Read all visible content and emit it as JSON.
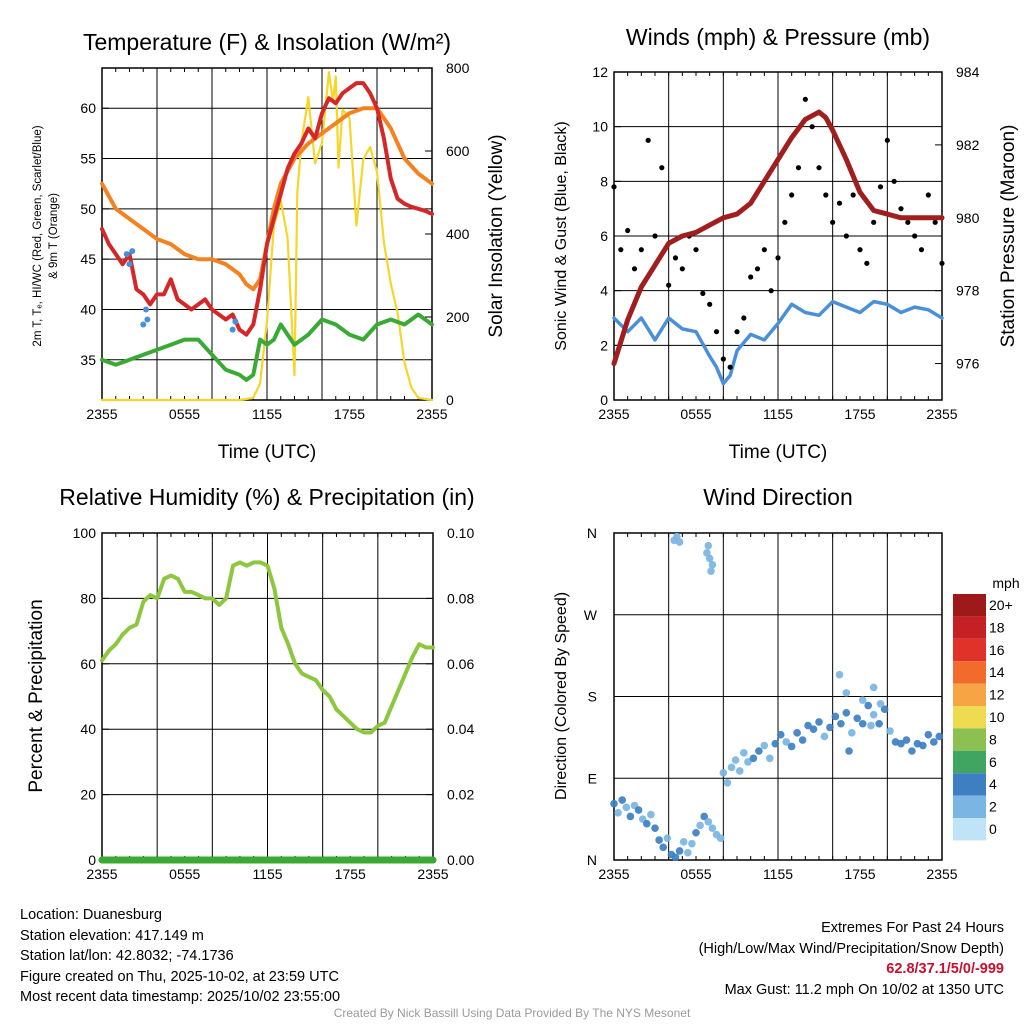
{
  "charts": {
    "temp": {
      "title": "Temperature (F) & Insolation (W/m²)",
      "ylabel_left": [
        "2m T, Tₑ, HI/WC (Red, Green, Scarlet/Blue)",
        "& 9m T (Orange)"
      ],
      "ylabel_right": "Solar Insolation (Yellow)",
      "xlabel": "Time (UTC)"
    },
    "wind": {
      "title": "Winds (mph) & Pressure (mb)",
      "ylabel_left": "Sonic Wind & Gust (Blue, Black)",
      "ylabel_right": "Station Pressure (Maroon)",
      "xlabel": "Time (UTC)"
    },
    "rh": {
      "title": "Relative Humidity (%) & Precipitation (in)",
      "ylabel_left": "Percent & Precipitation"
    },
    "dir": {
      "title": "Wind Direction",
      "ylabel_left": "Direction (Colored By Speed)",
      "colorbar_title": "mph"
    }
  },
  "chart_data": [
    {
      "id": "temp",
      "type": "line",
      "title": "Temperature (F) & Insolation (W/m²)",
      "xlabel": "Time (UTC)",
      "x_ticks": [
        "2355",
        "0555",
        "1155",
        "1755",
        "2355"
      ],
      "x_range_hours": [
        0,
        24
      ],
      "ylim": [
        31,
        64
      ],
      "y_ticks": [
        35,
        40,
        45,
        50,
        55,
        60
      ],
      "y2lim": [
        0,
        800
      ],
      "y2_ticks": [
        0,
        200,
        400,
        600,
        800
      ],
      "series": [
        {
          "name": "2m T",
          "color": "#d62728",
          "x": [
            0,
            0.5,
            1,
            1.5,
            2,
            2.5,
            3,
            3.5,
            4,
            4.5,
            5,
            5.5,
            6,
            6.5,
            7,
            7.5,
            8,
            8.5,
            9,
            9.5,
            10,
            10.5,
            11,
            11.5,
            12,
            12.5,
            13,
            13.5,
            14,
            14.5,
            15,
            15.5,
            16,
            16.5,
            17,
            17.5,
            18,
            18.5,
            19,
            19.5,
            20,
            20.5,
            21,
            21.5,
            22,
            22.5,
            23,
            23.5,
            24
          ],
          "y": [
            48,
            46.5,
            45.5,
            44.5,
            45.5,
            42,
            41.5,
            40.5,
            41.5,
            41.5,
            43,
            41,
            40.5,
            40,
            40.5,
            41,
            40,
            39.5,
            39,
            39.5,
            38,
            37.5,
            38.5,
            42,
            46.5,
            49,
            51.5,
            54,
            55.5,
            56.5,
            58,
            57,
            59.5,
            61,
            60.5,
            61.5,
            62,
            62.5,
            62.5,
            61.5,
            60,
            57,
            53,
            51,
            50.5,
            50.2,
            50,
            49.8,
            49.5
          ]
        },
        {
          "name": "9m T",
          "color": "#f58220",
          "x": [
            0,
            1,
            2,
            3,
            4,
            5,
            6,
            7,
            8,
            9,
            10,
            10.5,
            11,
            11.5,
            12,
            12.5,
            13,
            14,
            15,
            16,
            17,
            18,
            19,
            20,
            21,
            22,
            23,
            24
          ],
          "y": [
            52.5,
            50,
            49,
            48,
            47,
            46.5,
            45.5,
            45,
            45,
            44.5,
            43.5,
            42.5,
            42,
            43,
            46.5,
            50,
            52.5,
            55,
            56.5,
            57.5,
            58.5,
            59.5,
            60,
            60,
            58,
            55,
            53.5,
            52.5
          ]
        },
        {
          "name": "T dew",
          "color": "#3aaa35",
          "x": [
            0,
            1,
            2,
            3,
            4,
            5,
            6,
            7,
            8,
            9,
            10,
            10.5,
            11,
            11.5,
            12,
            12.5,
            13,
            13.5,
            14,
            15,
            16,
            17,
            18,
            19,
            20,
            21,
            22,
            23,
            24
          ],
          "y": [
            35,
            34.5,
            35,
            35.5,
            36,
            36.5,
            37,
            37,
            35.5,
            34,
            33.5,
            33,
            33.5,
            37,
            36.5,
            37,
            38.5,
            37.5,
            36.5,
            37.5,
            39,
            38.5,
            37.5,
            37,
            38.5,
            39,
            38.5,
            39.5,
            38.5
          ]
        },
        {
          "name": "HI/WC",
          "color": "#4a90d9",
          "x": [
            1.8,
            2.0,
            2.2,
            3.0,
            3.2,
            3.3,
            9.5,
            9.7
          ],
          "y": [
            45.5,
            44.5,
            45.8,
            38.5,
            40,
            39,
            38,
            38.8
          ]
        },
        {
          "name": "Solar",
          "axis": "right",
          "color": "#f5d62a",
          "x": [
            0,
            10,
            11,
            11.5,
            12,
            12.5,
            13,
            13.5,
            14,
            14.2,
            14.5,
            15,
            15.5,
            16,
            16.5,
            16.8,
            17,
            17.2,
            17.5,
            18,
            18.5,
            19,
            19.5,
            20,
            20.5,
            21,
            21.5,
            22,
            22.5,
            23,
            24
          ],
          "y": [
            0,
            0,
            5,
            40,
            190,
            420,
            480,
            390,
            60,
            500,
            620,
            730,
            570,
            620,
            790,
            720,
            780,
            560,
            700,
            680,
            420,
            580,
            610,
            550,
            380,
            280,
            210,
            90,
            30,
            5,
            0
          ]
        }
      ]
    },
    {
      "id": "wind",
      "type": "scatter",
      "title": "Winds (mph) & Pressure (mb)",
      "xlabel": "Time (UTC)",
      "x_ticks": [
        "2355",
        "0555",
        "1155",
        "1755",
        "2355"
      ],
      "ylim": [
        0,
        12
      ],
      "y_ticks": [
        0,
        2,
        4,
        6,
        8,
        10,
        12
      ],
      "y2lim": [
        975,
        984
      ],
      "y2_ticks": [
        976,
        978,
        980,
        982,
        984
      ],
      "series": [
        {
          "name": "Sonic Wind",
          "color": "#4a90d9",
          "x": [
            0,
            1,
            2,
            3,
            4,
            5,
            6,
            7,
            7.5,
            8,
            8.5,
            9,
            10,
            11,
            12,
            13,
            14,
            15,
            16,
            17,
            18,
            19,
            20,
            21,
            22,
            23,
            24
          ],
          "y": [
            3,
            2.5,
            3,
            2.2,
            3,
            2.6,
            2.5,
            1.6,
            1.2,
            0.6,
            0.9,
            1.8,
            2.4,
            2.2,
            2.8,
            3.5,
            3.2,
            3.1,
            3.6,
            3.4,
            3.2,
            3.6,
            3.5,
            3.2,
            3.4,
            3.3,
            3
          ]
        },
        {
          "name": "Gust",
          "color": "#000000",
          "x": [
            0,
            0.5,
            1,
            1.5,
            2,
            2.5,
            3,
            3.5,
            4,
            4.5,
            5,
            5.5,
            6,
            6.5,
            7,
            7.5,
            8,
            8.5,
            9,
            9.5,
            10,
            10.5,
            11,
            11.5,
            12,
            12.5,
            13,
            13.5,
            14,
            14.5,
            15,
            15.5,
            16,
            16.5,
            17,
            17.5,
            18,
            18.5,
            19,
            19.5,
            20,
            20.5,
            21,
            21.5,
            22,
            22.5,
            23,
            23.5,
            24
          ],
          "y": [
            7.8,
            5.5,
            6.2,
            4.8,
            5.5,
            9.5,
            6.0,
            8.5,
            4.2,
            5.2,
            4.8,
            6.0,
            5.5,
            3.9,
            3.5,
            2.5,
            1.5,
            1.2,
            2.5,
            3.0,
            4.5,
            4.8,
            5.5,
            4.0,
            5.2,
            6.5,
            7.5,
            8.5,
            11.0,
            10.0,
            8.5,
            7.5,
            6.5,
            7.2,
            6.0,
            7.5,
            5.5,
            5.0,
            6.5,
            7.8,
            9.5,
            8.0,
            7.0,
            6.5,
            6.0,
            5.5,
            7.5,
            6.5,
            5.0
          ]
        },
        {
          "name": "Pressure",
          "axis": "right",
          "color": "#a01e1e",
          "x": [
            0,
            1,
            2,
            3,
            4,
            5,
            6,
            7,
            8,
            9,
            10,
            11,
            12,
            13,
            14,
            15,
            15.5,
            16,
            17,
            18,
            19,
            20,
            21,
            22,
            23,
            24
          ],
          "y": [
            976,
            977.2,
            978.1,
            978.7,
            979.3,
            979.5,
            979.6,
            979.8,
            980.0,
            980.1,
            980.4,
            981.0,
            981.6,
            982.2,
            982.7,
            982.9,
            982.75,
            982.4,
            981.6,
            980.7,
            980.2,
            980.1,
            980.0,
            980.0,
            980.0,
            980.0
          ]
        }
      ]
    },
    {
      "id": "rh",
      "type": "line",
      "title": "Relative Humidity (%) & Precipitation (in)",
      "x_ticks": [
        "2355",
        "0555",
        "1155",
        "1755",
        "2355"
      ],
      "ylim": [
        0,
        100
      ],
      "y_ticks": [
        0,
        20,
        40,
        60,
        80,
        100
      ],
      "y2lim": [
        0,
        0.1
      ],
      "y2_ticks": [
        "0.00",
        "0.02",
        "0.04",
        "0.06",
        "0.08",
        "0.10"
      ],
      "series": [
        {
          "name": "RH",
          "color": "#8dc63f",
          "x": [
            0,
            0.5,
            1,
            1.5,
            2,
            2.5,
            3,
            3.5,
            4,
            4.5,
            5,
            5.5,
            6,
            6.5,
            7,
            7.5,
            8,
            8.5,
            9,
            9.5,
            10,
            10.5,
            11,
            11.5,
            12,
            12.5,
            13,
            13.5,
            14,
            14.5,
            15,
            15.5,
            16,
            16.5,
            17,
            17.5,
            18,
            18.5,
            19,
            19.5,
            20,
            20.5,
            21,
            21.5,
            22,
            22.5,
            23,
            23.5,
            24
          ],
          "y": [
            61,
            64,
            66,
            69,
            71,
            72,
            79,
            81,
            80,
            86,
            87,
            86,
            82,
            82,
            81,
            80,
            80,
            78,
            80,
            90,
            91,
            90,
            91,
            91,
            90,
            83,
            71,
            66,
            60,
            57,
            56,
            55,
            52,
            50,
            46,
            44,
            42,
            40,
            39,
            39,
            41,
            42,
            47,
            52,
            57,
            62,
            66,
            65,
            65
          ]
        },
        {
          "name": "Precipitation",
          "color": "#3aaa35",
          "x": [
            0,
            24
          ],
          "y": [
            0,
            0
          ]
        }
      ]
    },
    {
      "id": "dir",
      "type": "scatter",
      "title": "Wind Direction",
      "x_ticks": [
        "2355",
        "0555",
        "1155",
        "1755",
        "2355"
      ],
      "y_ticks": [
        "N",
        "E",
        "S",
        "W",
        "N"
      ],
      "ylim_degrees": [
        0,
        360
      ],
      "colorbar_labels": [
        "20+",
        "18",
        "16",
        "14",
        "12",
        "10",
        "8",
        "6",
        "4",
        "2",
        "0"
      ],
      "colorbar_colors": [
        "#9e1a1a",
        "#c62027",
        "#e03228",
        "#f26a2c",
        "#f7a444",
        "#efdb50",
        "#8cc151",
        "#3fa560",
        "#3d7fc2",
        "#7ab5e3",
        "#bfe3f7"
      ],
      "series": [
        {
          "name": "direction",
          "x": [
            0,
            0.3,
            0.6,
            0.9,
            1.2,
            1.5,
            1.8,
            2.1,
            2.4,
            2.7,
            3.0,
            3.3,
            3.6,
            3.9,
            4.2,
            4.5,
            4.8,
            5.1,
            5.4,
            5.7,
            6.0,
            6.3,
            6.6,
            6.9,
            7.2,
            7.5,
            7.8,
            8.0,
            8.3,
            8.6,
            8.9,
            9.2,
            9.5,
            9.8,
            10.2,
            10.6,
            11.0,
            11.4,
            11.8,
            12.2,
            12.6,
            13.0,
            13.4,
            13.8,
            14.2,
            14.6,
            15.0,
            15.4,
            15.8,
            16.2,
            16.6,
            17.0,
            17.4,
            17.8,
            18.2,
            18.6,
            19.0,
            19.4,
            19.8,
            20.2,
            20.6,
            21.0,
            21.4,
            21.8,
            22.2,
            22.6,
            23.0,
            23.4,
            23.8,
            4.4,
            4.6,
            4.8,
            6.8,
            7.0,
            7.2,
            7.1,
            6.9,
            16.5,
            17.0,
            17.2,
            18.2,
            18.8,
            19.0,
            19.5
          ],
          "y": [
            62,
            52,
            66,
            58,
            48,
            60,
            55,
            45,
            40,
            50,
            35,
            22,
            14,
            24,
            6,
            3,
            10,
            20,
            8,
            18,
            30,
            38,
            48,
            42,
            35,
            28,
            24,
            96,
            85,
            102,
            110,
            98,
            118,
            108,
            112,
            120,
            126,
            112,
            128,
            138,
            130,
            125,
            140,
            132,
            148,
            144,
            152,
            136,
            146,
            158,
            150,
            162,
            140,
            156,
            150,
            170,
            160,
            150,
            166,
            142,
            130,
            128,
            132,
            120,
            128,
            126,
            138,
            130,
            136,
            352,
            356,
            350,
            338,
            332,
            325,
            318,
            346,
            204,
            184,
            120,
            176,
            148,
            190,
            172
          ],
          "speed": [
            3,
            2,
            3,
            2,
            3,
            2,
            3,
            2,
            3,
            2,
            3,
            3,
            4,
            2,
            3,
            4,
            3,
            2,
            1,
            2,
            3,
            2,
            3,
            1,
            2,
            1,
            1,
            1,
            2,
            2,
            1,
            2,
            2,
            2,
            3,
            3,
            2,
            2,
            3,
            3,
            2,
            3,
            4,
            3,
            3,
            4,
            3,
            2,
            3,
            4,
            4,
            3,
            2,
            3,
            4,
            3,
            2,
            3,
            3,
            2,
            3,
            4,
            3,
            4,
            3,
            3,
            4,
            3,
            3,
            1,
            1,
            1,
            1,
            1,
            1,
            2,
            1,
            2,
            2,
            3,
            1,
            1,
            2,
            2
          ]
        }
      ]
    }
  ],
  "info_left": {
    "location": "Location: Duanesburg",
    "elevation": "Station elevation: 417.149 m",
    "latlon": "Station lat/lon: 42.8032; -74.1736",
    "created": "Figure created on Thu, 2025-10-02, at 23:59 UTC",
    "recent": "Most recent data timestamp: 2025/10/02 23:55:00"
  },
  "info_right": {
    "extremes_title": "Extremes For Past 24 Hours",
    "extremes_subtitle": "(High/Low/Max Wind/Precipitation/Snow Depth)",
    "extremes_values": "62.8/37.1/5/0/-999",
    "max_gust": "Max Gust: 11.2 mph On 10/02 at 1350 UTC"
  },
  "credit": "Created By Nick Bassill Using Data Provided By The NYS Mesonet",
  "colors": {
    "extremes_red": "#c8102e"
  }
}
